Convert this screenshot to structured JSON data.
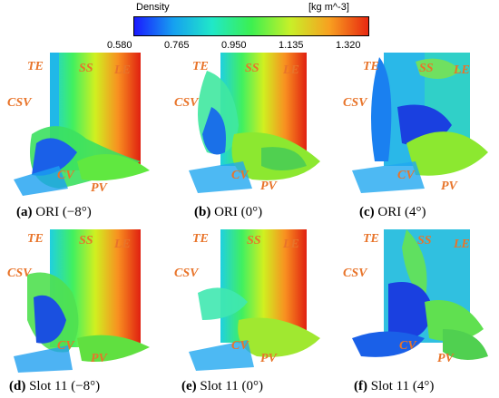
{
  "colorbar": {
    "title": "Density",
    "unit": "[kg m^-3]",
    "ticks": [
      "0.580",
      "0.765",
      "0.950",
      "1.135",
      "1.320"
    ],
    "gradient": [
      "#1a1aff",
      "#16a0f0",
      "#20e8c8",
      "#3cf050",
      "#c8f028",
      "#f8a020",
      "#e82810"
    ]
  },
  "labels": {
    "te": "TE",
    "ss": "SS",
    "le": "LE",
    "csv": "CSV",
    "cv": "CV",
    "pv": "PV"
  },
  "captions": [
    {
      "letter": "(a)",
      "text": " ORI (−8°)"
    },
    {
      "letter": "(b)",
      "text": " ORI (0°)"
    },
    {
      "letter": "(c)",
      "text": " ORI (4°)"
    },
    {
      "letter": "(d)",
      "text": " Slot 11 (−8°)"
    },
    {
      "letter": "(e)",
      "text": " Slot 11 (0°)"
    },
    {
      "letter": "(f)",
      "text": " Slot 11 (4°)"
    }
  ]
}
